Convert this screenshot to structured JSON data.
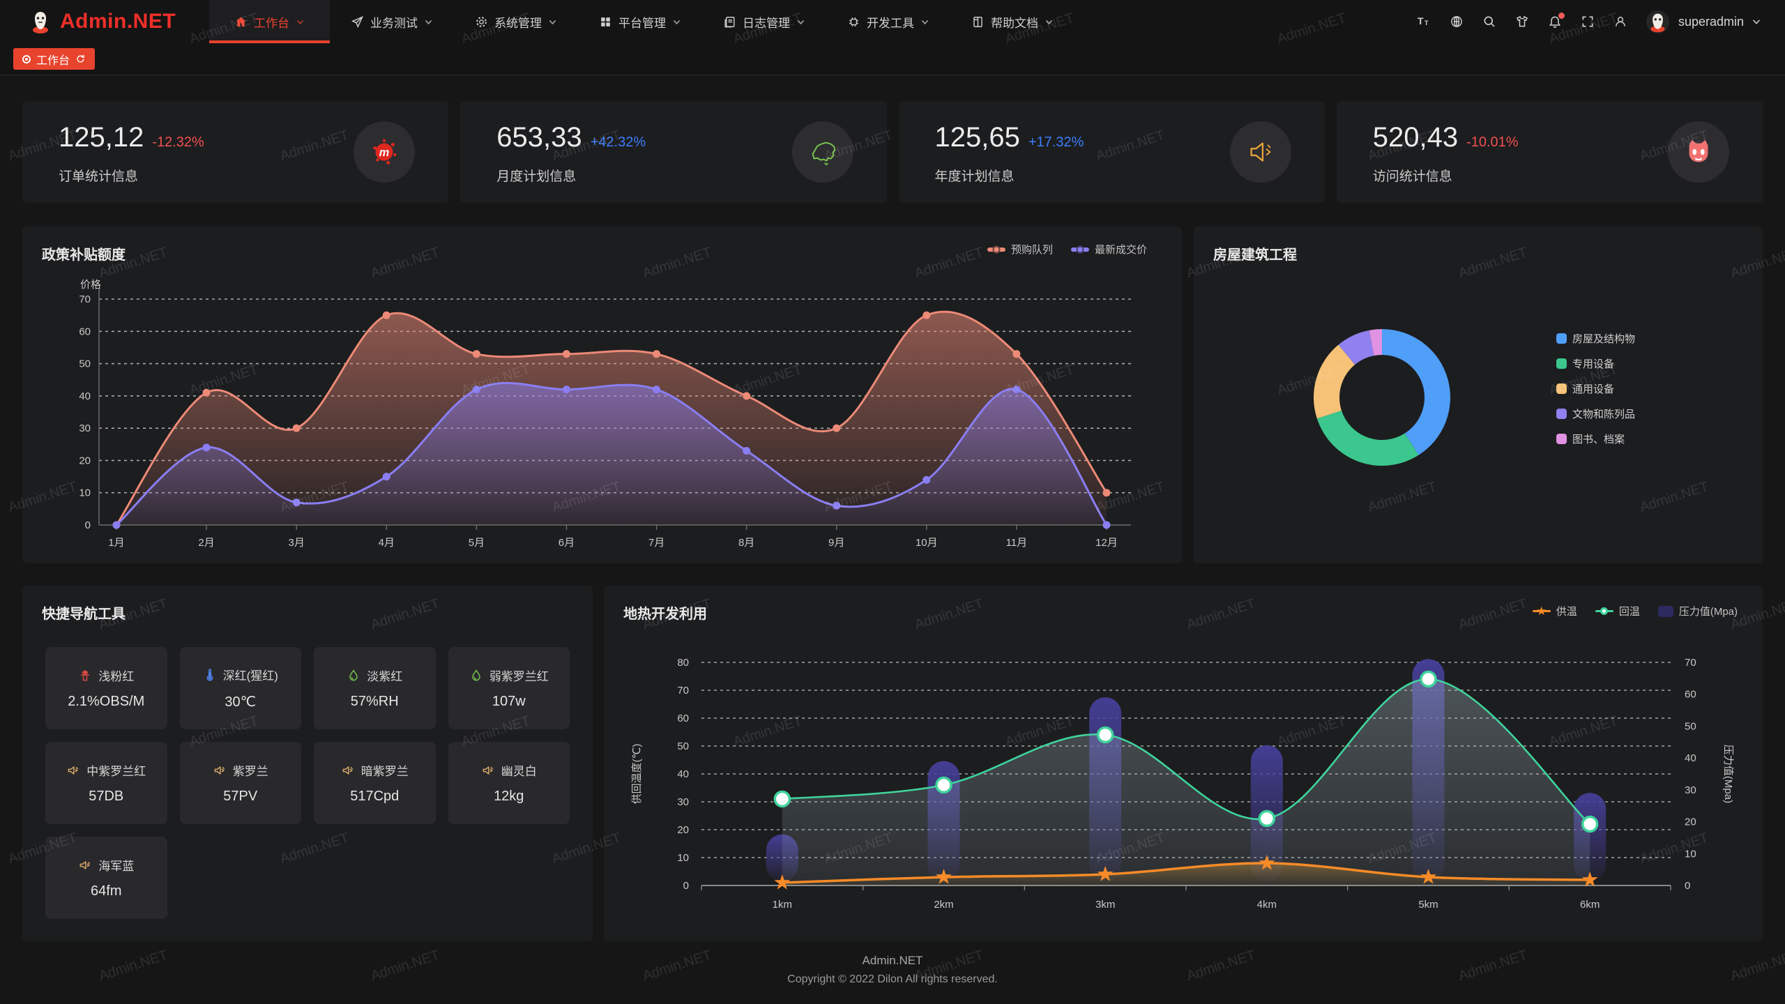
{
  "header": {
    "logo": "Admin.NET",
    "menu": [
      {
        "label": "工作台",
        "icon": "home-icon",
        "active": true
      },
      {
        "label": "业务测试",
        "icon": "send-icon"
      },
      {
        "label": "系统管理",
        "icon": "gear-icon"
      },
      {
        "label": "平台管理",
        "icon": "grid-icon"
      },
      {
        "label": "日志管理",
        "icon": "log-icon"
      },
      {
        "label": "开发工具",
        "icon": "chip-icon"
      },
      {
        "label": "帮助文档",
        "icon": "docs-icon"
      }
    ],
    "user": "superadmin"
  },
  "tabbar": {
    "active_tab": "工作台"
  },
  "stats": [
    {
      "value": "125,12",
      "delta": "-12.32%",
      "trend": "down",
      "label": "订单统计信息",
      "icon": "splat-icon"
    },
    {
      "value": "653,33",
      "delta": "+42.32%",
      "trend": "up",
      "label": "月度计划信息",
      "icon": "china-map-icon"
    },
    {
      "value": "125,65",
      "delta": "+17.32%",
      "trend": "up",
      "label": "年度计划信息",
      "icon": "speaker-icon"
    },
    {
      "value": "520,43",
      "delta": "-10.01%",
      "trend": "down",
      "label": "访问统计信息",
      "icon": "cat-face-icon"
    }
  ],
  "chart_data": [
    {
      "type": "area",
      "title": "政策补贴额度",
      "ylabel": "价格",
      "ylim": [
        0,
        70
      ],
      "ytick_step": 10,
      "grid": true,
      "legend_position": "top-right",
      "categories": [
        "1月",
        "2月",
        "3月",
        "4月",
        "5月",
        "6月",
        "7月",
        "8月",
        "9月",
        "10月",
        "11月",
        "12月"
      ],
      "series": [
        {
          "name": "预购队列",
          "color": "#ec8a77",
          "values": [
            0,
            41,
            30,
            65,
            53,
            53,
            53,
            40,
            30,
            65,
            53,
            10
          ]
        },
        {
          "name": "最新成交价",
          "color": "#8a7ef2",
          "values": [
            0,
            24,
            7,
            15,
            42,
            42,
            42,
            23,
            6,
            14,
            42,
            0
          ]
        }
      ]
    },
    {
      "type": "pie",
      "title": "房屋建筑工程",
      "legend_position": "right",
      "segments": [
        {
          "label": "房屋及结构物",
          "value": 41,
          "color": "#4f9ef8"
        },
        {
          "label": "专用设备",
          "value": 29,
          "color": "#3bc78d"
        },
        {
          "label": "通用设备",
          "value": 19,
          "color": "#f6c277"
        },
        {
          "label": "文物和陈列品",
          "value": 8,
          "color": "#8f81ef"
        },
        {
          "label": "图书、档案",
          "value": 3,
          "color": "#e091e2"
        }
      ]
    },
    {
      "type": "mixed",
      "title": "地热开发利用",
      "categories": [
        "1km",
        "2km",
        "3km",
        "4km",
        "5km",
        "6km"
      ],
      "left_axis": {
        "label": "供回温度(℃)",
        "min": 0,
        "max": 80,
        "step": 10
      },
      "right_axis": {
        "label": "压力值(Mpa)",
        "min": 0,
        "max": 70,
        "step": 10
      },
      "grid": true,
      "legend_position": "top-right",
      "series": [
        {
          "name": "供温",
          "type": "line",
          "marker": "star",
          "color": "#f78b28",
          "axis": "left",
          "values": [
            1,
            3,
            4,
            8,
            3,
            2
          ]
        },
        {
          "name": "回温",
          "type": "line",
          "marker": "circle",
          "color": "#3fd49c",
          "axis": "left",
          "values": [
            31,
            36,
            54,
            24,
            74,
            22
          ]
        },
        {
          "name": "压力值(Mpa)",
          "type": "bar",
          "color": "#46409a",
          "swatch": "#2c2a5e",
          "axis": "right",
          "values": [
            11,
            34,
            54,
            39,
            66,
            24
          ]
        }
      ]
    }
  ],
  "quick_nav": {
    "title": "快捷导航工具",
    "items": [
      {
        "label": "浅粉红",
        "value": "2.1%OBS/M",
        "icon": "hydrant-icon",
        "icon_color": "#d94b40"
      },
      {
        "label": "深红(猩红)",
        "value": "30℃",
        "icon": "thermometer-icon",
        "icon_color": "#5086f2"
      },
      {
        "label": "淡紫红",
        "value": "57%RH",
        "icon": "drop-icon",
        "icon_color": "#74c04b"
      },
      {
        "label": "弱紫罗兰红",
        "value": "107w",
        "icon": "drop-icon",
        "icon_color": "#74c04b"
      },
      {
        "label": "中紫罗兰红",
        "value": "57DB",
        "icon": "speaker-icon",
        "icon_color": "#d9a868"
      },
      {
        "label": "紫罗兰",
        "value": "57PV",
        "icon": "speaker-icon",
        "icon_color": "#d9a868"
      },
      {
        "label": "暗紫罗兰",
        "value": "517Cpd",
        "icon": "speaker-icon",
        "icon_color": "#d9a868"
      },
      {
        "label": "幽灵白",
        "value": "12kg",
        "icon": "speaker-icon",
        "icon_color": "#d9a868"
      },
      {
        "label": "海军蓝",
        "value": "64fm",
        "icon": "speaker-icon",
        "icon_color": "#d9a868"
      }
    ]
  },
  "footer": {
    "line1": "Admin.NET",
    "line2": "Copyright © 2022 Dilon All rights reserved."
  },
  "watermark": {
    "text": "Admin.NET"
  },
  "colors": {
    "accent_red": "#e8432d",
    "delta_down": "#f15050",
    "delta_up": "#3c7dfa",
    "panel_bg": "#1c1d1f"
  }
}
